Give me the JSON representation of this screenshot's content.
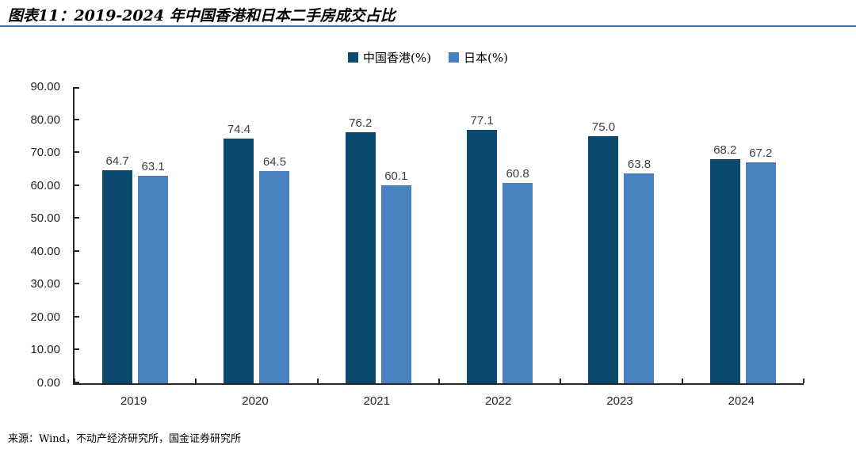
{
  "title": "图表11：2019-2024 年中国香港和日本二手房成交占比",
  "source": "来源：Wind，不动产经济研究所，国金证券研究所",
  "colors": {
    "hk_bar": "#0B4A6F",
    "japan_bar": "#4A82C1",
    "title_rule": "#41719C",
    "axis": "#262626",
    "value_label": "#404040"
  },
  "chart_data": {
    "type": "bar",
    "categories": [
      "2019",
      "2020",
      "2021",
      "2022",
      "2023",
      "2024"
    ],
    "series": [
      {
        "name": "中国香港(%)",
        "color": "#0B4A6F",
        "values": [
          64.7,
          74.4,
          76.2,
          77.1,
          75.0,
          68.2
        ]
      },
      {
        "name": "日本(%)",
        "color": "#4A82C1",
        "values": [
          63.1,
          64.5,
          60.1,
          60.8,
          63.8,
          67.2
        ]
      }
    ],
    "title": "2019-2024 年中国香港和日本二手房成交占比",
    "xlabel": "",
    "ylabel": "",
    "ylim": [
      0,
      90
    ],
    "y_ticks": [
      "0.00",
      "10.00",
      "20.00",
      "30.00",
      "40.00",
      "50.00",
      "60.00",
      "70.00",
      "80.00",
      "90.00"
    ],
    "grid": false,
    "legend_position": "top",
    "value_labels_shown": true
  }
}
